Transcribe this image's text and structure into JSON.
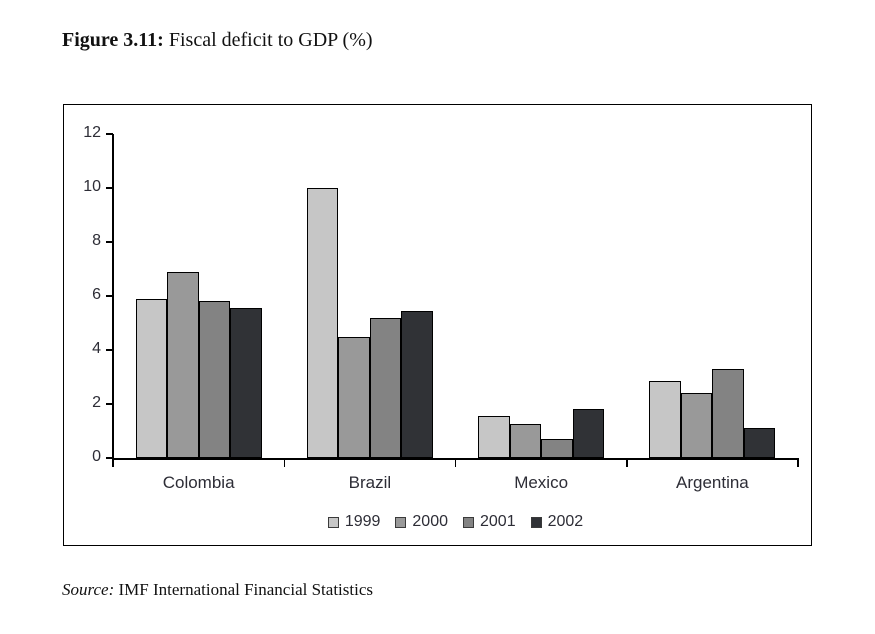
{
  "figure": {
    "label": "Figure 3.11:",
    "title": " Fiscal deficit to GDP (%)"
  },
  "source": {
    "label": "Source:",
    "text": " IMF International Financial Statistics"
  },
  "chart_data": {
    "type": "bar",
    "title": "Fiscal deficit to GDP (%)",
    "xlabel": "",
    "ylabel": "",
    "categories": [
      "Colombia",
      "Brazil",
      "Mexico",
      "Argentina"
    ],
    "series": [
      {
        "name": "1999",
        "color": "#c6c6c6",
        "values": [
          5.9,
          10.0,
          1.55,
          2.85
        ]
      },
      {
        "name": "2000",
        "color": "#999999",
        "values": [
          6.9,
          4.5,
          1.25,
          2.4
        ]
      },
      {
        "name": "2001",
        "color": "#838383",
        "values": [
          5.8,
          5.2,
          0.7,
          3.3
        ]
      },
      {
        "name": "2002",
        "color": "#303236",
        "values": [
          5.55,
          5.45,
          1.8,
          1.1
        ]
      }
    ],
    "ylim": [
      0,
      12
    ],
    "yticks": [
      0,
      2,
      4,
      6,
      8,
      10,
      12
    ],
    "grid": false,
    "legend_position": "bottom-center"
  }
}
